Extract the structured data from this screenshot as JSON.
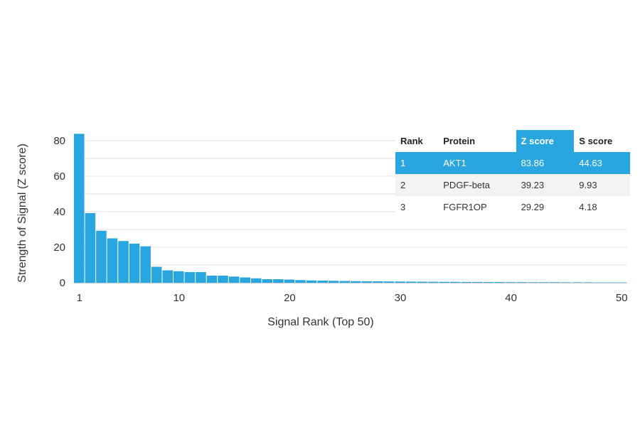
{
  "chart_data": {
    "type": "bar",
    "x": [
      1,
      2,
      3,
      4,
      5,
      6,
      7,
      8,
      9,
      10,
      11,
      12,
      13,
      14,
      15,
      16,
      17,
      18,
      19,
      20,
      21,
      22,
      23,
      24,
      25,
      26,
      27,
      28,
      29,
      30,
      31,
      32,
      33,
      34,
      35,
      36,
      37,
      38,
      39,
      40,
      41,
      42,
      43,
      44,
      45,
      46,
      47,
      48,
      49,
      50
    ],
    "values": [
      83.86,
      39.23,
      29.29,
      25,
      23.5,
      22,
      20.5,
      9,
      7,
      6.5,
      6,
      6,
      4,
      4,
      3.5,
      3,
      2.5,
      2,
      2,
      1.8,
      1.5,
      1.3,
      1.2,
      1.1,
      1,
      0.9,
      0.85,
      0.8,
      0.75,
      0.7,
      0.65,
      0.6,
      0.55,
      0.5,
      0.5,
      0.45,
      0.45,
      0.4,
      0.4,
      0.35,
      0.35,
      0.3,
      0.3,
      0.3,
      0.25,
      0.25,
      0.25,
      0.2,
      0.2,
      0.2
    ],
    "xticks": [
      1,
      10,
      20,
      30,
      40,
      50
    ],
    "yticks": [
      0,
      20,
      40,
      60,
      80
    ],
    "xlabel": "Signal Rank (Top 50)",
    "ylabel": "Strength of Signal (Z score)",
    "ylim": [
      0,
      84
    ],
    "grid": "horizontal",
    "bar_color": "#29a6e0"
  },
  "table": {
    "headers": [
      "Rank",
      "Protein",
      "Z score",
      "S score"
    ],
    "rows": [
      [
        "1",
        "AKT1",
        "83.86",
        "44.63"
      ],
      [
        "2",
        "PDGF-beta",
        "39.23",
        "9.93"
      ],
      [
        "3",
        "FGFR1OP",
        "29.29",
        "4.18"
      ]
    ],
    "highlight_color": "#29a6e0"
  }
}
